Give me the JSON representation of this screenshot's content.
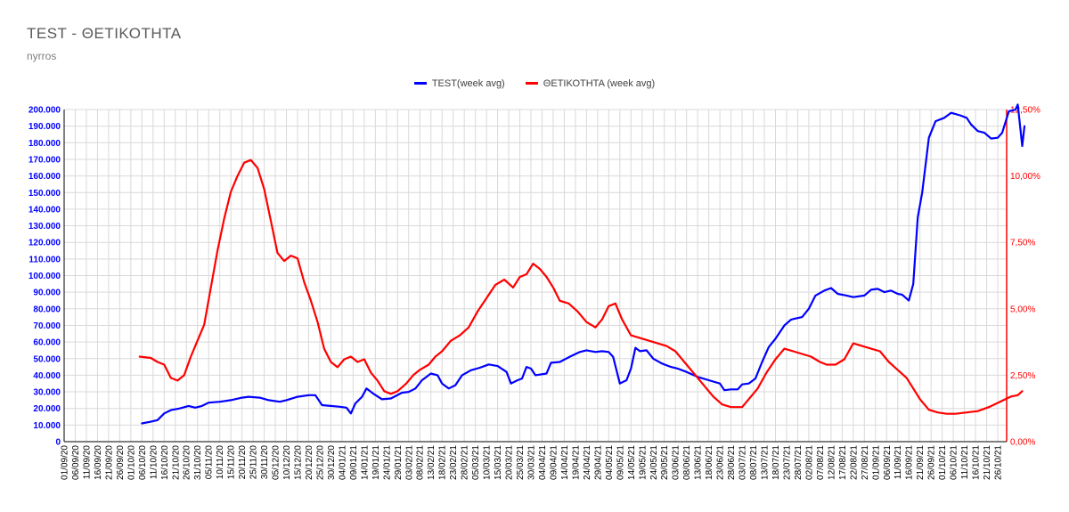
{
  "title": "TEST - ΘΕΤΙΚΟΤΗΤΑ",
  "subtitle": "nyrros",
  "colors": {
    "test": "#0000ff",
    "positivity": "#ff0000",
    "grid": "#d9d9d9"
  },
  "chart_data": {
    "type": "line",
    "title": "TEST - ΘΕΤΙΚΟΤΗΤΑ",
    "subtitle": "nyrros",
    "legend_position": "top-center",
    "grid": true,
    "x_start": "2020-09-01",
    "x_end": "2021-10-30",
    "x_tick_labels": [
      "01/09/20",
      "06/09/20",
      "11/09/20",
      "16/09/20",
      "21/09/20",
      "26/09/20",
      "01/10/20",
      "06/10/20",
      "11/10/20",
      "16/10/20",
      "21/10/20",
      "26/10/20",
      "31/10/20",
      "05/11/20",
      "10/11/20",
      "15/11/20",
      "20/11/20",
      "25/11/20",
      "30/11/20",
      "05/12/20",
      "10/12/20",
      "15/12/20",
      "20/12/20",
      "25/12/20",
      "30/12/20",
      "04/01/21",
      "09/01/21",
      "14/01/21",
      "19/01/21",
      "24/01/21",
      "29/01/21",
      "03/02/21",
      "08/02/21",
      "13/02/21",
      "18/02/21",
      "23/02/21",
      "28/02/21",
      "05/03/21",
      "10/03/21",
      "15/03/21",
      "20/03/21",
      "25/03/21",
      "30/03/21",
      "04/04/21",
      "09/04/21",
      "14/04/21",
      "19/04/21",
      "24/04/21",
      "29/04/21",
      "04/05/21",
      "09/05/21",
      "14/05/21",
      "19/05/21",
      "24/05/21",
      "29/05/21",
      "03/06/21",
      "08/06/21",
      "13/06/21",
      "18/06/21",
      "23/06/21",
      "28/06/21",
      "03/07/21",
      "08/07/21",
      "13/07/21",
      "18/07/21",
      "23/07/21",
      "28/07/21",
      "02/08/21",
      "07/08/21",
      "12/08/21",
      "17/08/21",
      "22/08/21",
      "27/08/21",
      "01/09/21",
      "06/09/21",
      "11/09/21",
      "16/09/21",
      "21/09/21",
      "26/09/21",
      "01/10/21",
      "06/10/21",
      "11/10/21",
      "16/10/21",
      "21/10/21",
      "26/10/21"
    ],
    "y_left": {
      "min": 0,
      "max": 200000,
      "tick_labels": [
        "0",
        "10.000",
        "20.000",
        "30.000",
        "40.000",
        "50.000",
        "60.000",
        "70.000",
        "80.000",
        "90.000",
        "100.000",
        "110.000",
        "120.000",
        "130.000",
        "140.000",
        "150.000",
        "160.000",
        "170.000",
        "180.000",
        "190.000",
        "200.000"
      ]
    },
    "y_right": {
      "min": 0,
      "max": 12.5,
      "tick_labels": [
        "0,00%",
        "2,50%",
        "5,00%",
        "7,50%",
        "10,00%",
        "12,50%"
      ]
    },
    "series": [
      {
        "name": "TEST(week avg)",
        "axis": "left",
        "color": "#0000ff",
        "points": [
          [
            "2020-10-06",
            11000
          ],
          [
            "2020-10-10",
            12000
          ],
          [
            "2020-10-13",
            13000
          ],
          [
            "2020-10-16",
            17000
          ],
          [
            "2020-10-19",
            19000
          ],
          [
            "2020-10-23",
            20000
          ],
          [
            "2020-10-27",
            21500
          ],
          [
            "2020-10-30",
            20500
          ],
          [
            "2020-11-02",
            21500
          ],
          [
            "2020-11-05",
            23500
          ],
          [
            "2020-11-10",
            24000
          ],
          [
            "2020-11-15",
            25000
          ],
          [
            "2020-11-20",
            26500
          ],
          [
            "2020-11-23",
            27000
          ],
          [
            "2020-11-28",
            26500
          ],
          [
            "2020-12-02",
            25000
          ],
          [
            "2020-12-07",
            24000
          ],
          [
            "2020-12-10",
            25000
          ],
          [
            "2020-12-15",
            27000
          ],
          [
            "2020-12-20",
            28000
          ],
          [
            "2020-12-23",
            28000
          ],
          [
            "2020-12-26",
            22000
          ],
          [
            "2020-12-30",
            21500
          ],
          [
            "2021-01-03",
            21000
          ],
          [
            "2021-01-06",
            20500
          ],
          [
            "2021-01-08",
            17000
          ],
          [
            "2021-01-10",
            23000
          ],
          [
            "2021-01-13",
            27000
          ],
          [
            "2021-01-15",
            32000
          ],
          [
            "2021-01-18",
            29000
          ],
          [
            "2021-01-22",
            25500
          ],
          [
            "2021-01-26",
            26000
          ],
          [
            "2021-01-31",
            29500
          ],
          [
            "2021-02-03",
            30000
          ],
          [
            "2021-02-06",
            32000
          ],
          [
            "2021-02-09",
            37000
          ],
          [
            "2021-02-13",
            41000
          ],
          [
            "2021-02-16",
            40000
          ],
          [
            "2021-02-18",
            35000
          ],
          [
            "2021-02-21",
            32000
          ],
          [
            "2021-02-24",
            34000
          ],
          [
            "2021-02-27",
            40000
          ],
          [
            "2021-03-03",
            43000
          ],
          [
            "2021-03-07",
            44500
          ],
          [
            "2021-03-11",
            46500
          ],
          [
            "2021-03-15",
            45500
          ],
          [
            "2021-03-19",
            42000
          ],
          [
            "2021-03-21",
            35000
          ],
          [
            "2021-03-24",
            37000
          ],
          [
            "2021-03-26",
            38000
          ],
          [
            "2021-03-28",
            45000
          ],
          [
            "2021-03-30",
            44000
          ],
          [
            "2021-04-01",
            40000
          ],
          [
            "2021-04-06",
            41000
          ],
          [
            "2021-04-08",
            47500
          ],
          [
            "2021-04-12",
            48000
          ],
          [
            "2021-04-17",
            51500
          ],
          [
            "2021-04-21",
            54000
          ],
          [
            "2021-04-24",
            55000
          ],
          [
            "2021-04-28",
            54000
          ],
          [
            "2021-05-01",
            54500
          ],
          [
            "2021-05-04",
            54000
          ],
          [
            "2021-05-06",
            51000
          ],
          [
            "2021-05-09",
            35000
          ],
          [
            "2021-05-12",
            37000
          ],
          [
            "2021-05-14",
            44000
          ],
          [
            "2021-05-16",
            56500
          ],
          [
            "2021-05-18",
            54500
          ],
          [
            "2021-05-21",
            55000
          ],
          [
            "2021-05-24",
            50000
          ],
          [
            "2021-05-28",
            47000
          ],
          [
            "2021-06-01",
            45000
          ],
          [
            "2021-06-04",
            44000
          ],
          [
            "2021-06-08",
            42000
          ],
          [
            "2021-06-13",
            39000
          ],
          [
            "2021-06-18",
            37000
          ],
          [
            "2021-06-23",
            35000
          ],
          [
            "2021-06-25",
            31000
          ],
          [
            "2021-06-28",
            31500
          ],
          [
            "2021-07-01",
            31500
          ],
          [
            "2021-07-03",
            34500
          ],
          [
            "2021-07-06",
            35000
          ],
          [
            "2021-07-09",
            38000
          ],
          [
            "2021-07-12",
            48000
          ],
          [
            "2021-07-15",
            57000
          ],
          [
            "2021-07-18",
            62000
          ],
          [
            "2021-07-22",
            70000
          ],
          [
            "2021-07-25",
            73500
          ],
          [
            "2021-07-30",
            75000
          ],
          [
            "2021-08-02",
            80000
          ],
          [
            "2021-08-05",
            88000
          ],
          [
            "2021-08-09",
            91000
          ],
          [
            "2021-08-12",
            92500
          ],
          [
            "2021-08-15",
            89000
          ],
          [
            "2021-08-19",
            88000
          ],
          [
            "2021-08-22",
            87000
          ],
          [
            "2021-08-27",
            88000
          ],
          [
            "2021-08-30",
            91500
          ],
          [
            "2021-09-02",
            92000
          ],
          [
            "2021-09-05",
            90000
          ],
          [
            "2021-09-08",
            91000
          ],
          [
            "2021-09-11",
            89000
          ],
          [
            "2021-09-13",
            88500
          ],
          [
            "2021-09-16",
            85000
          ],
          [
            "2021-09-18",
            95000
          ],
          [
            "2021-09-20",
            135000
          ],
          [
            "2021-09-22",
            150000
          ],
          [
            "2021-09-25",
            183000
          ],
          [
            "2021-09-28",
            193000
          ],
          [
            "2021-10-02",
            195000
          ],
          [
            "2021-10-05",
            198000
          ],
          [
            "2021-10-09",
            196500
          ],
          [
            "2021-10-12",
            195000
          ],
          [
            "2021-10-14",
            191000
          ],
          [
            "2021-10-17",
            187000
          ],
          [
            "2021-10-20",
            186000
          ],
          [
            "2021-10-23",
            182500
          ],
          [
            "2021-10-26",
            183000
          ],
          [
            "2021-10-28",
            186000
          ],
          [
            "2021-10-31",
            199000
          ],
          [
            "2021-11-03",
            200000
          ],
          [
            "2021-11-04",
            203000
          ],
          [
            "2021-11-06",
            178000
          ],
          [
            "2021-11-07",
            190000
          ]
        ]
      },
      {
        "name": "ΘΕΤΙΚΟΤΗΤΑ (week avg)",
        "axis": "right",
        "color": "#ff0000",
        "points": [
          [
            "2020-10-05",
            3.2
          ],
          [
            "2020-10-10",
            3.15
          ],
          [
            "2020-10-13",
            3.0
          ],
          [
            "2020-10-16",
            2.9
          ],
          [
            "2020-10-19",
            2.4
          ],
          [
            "2020-10-22",
            2.3
          ],
          [
            "2020-10-25",
            2.5
          ],
          [
            "2020-10-28",
            3.2
          ],
          [
            "2020-10-31",
            3.8
          ],
          [
            "2020-11-03",
            4.4
          ],
          [
            "2020-11-06",
            5.8
          ],
          [
            "2020-11-09",
            7.2
          ],
          [
            "2020-11-12",
            8.4
          ],
          [
            "2020-11-15",
            9.4
          ],
          [
            "2020-11-18",
            10.0
          ],
          [
            "2020-11-21",
            10.5
          ],
          [
            "2020-11-24",
            10.6
          ],
          [
            "2020-11-27",
            10.3
          ],
          [
            "2020-11-30",
            9.5
          ],
          [
            "2020-12-03",
            8.3
          ],
          [
            "2020-12-06",
            7.1
          ],
          [
            "2020-12-09",
            6.8
          ],
          [
            "2020-12-12",
            7.0
          ],
          [
            "2020-12-15",
            6.9
          ],
          [
            "2020-12-18",
            6.0
          ],
          [
            "2020-12-21",
            5.3
          ],
          [
            "2020-12-24",
            4.5
          ],
          [
            "2020-12-27",
            3.5
          ],
          [
            "2020-12-30",
            3.0
          ],
          [
            "2021-01-02",
            2.8
          ],
          [
            "2021-01-05",
            3.1
          ],
          [
            "2021-01-08",
            3.2
          ],
          [
            "2021-01-11",
            3.0
          ],
          [
            "2021-01-14",
            3.1
          ],
          [
            "2021-01-17",
            2.6
          ],
          [
            "2021-01-20",
            2.3
          ],
          [
            "2021-01-23",
            1.9
          ],
          [
            "2021-01-26",
            1.8
          ],
          [
            "2021-01-29",
            1.9
          ],
          [
            "2021-02-02",
            2.2
          ],
          [
            "2021-02-05",
            2.5
          ],
          [
            "2021-02-08",
            2.7
          ],
          [
            "2021-02-12",
            2.9
          ],
          [
            "2021-02-15",
            3.2
          ],
          [
            "2021-02-18",
            3.4
          ],
          [
            "2021-02-22",
            3.8
          ],
          [
            "2021-02-26",
            4.0
          ],
          [
            "2021-03-02",
            4.3
          ],
          [
            "2021-03-06",
            4.9
          ],
          [
            "2021-03-10",
            5.4
          ],
          [
            "2021-03-14",
            5.9
          ],
          [
            "2021-03-18",
            6.1
          ],
          [
            "2021-03-22",
            5.8
          ],
          [
            "2021-03-25",
            6.2
          ],
          [
            "2021-03-28",
            6.3
          ],
          [
            "2021-03-31",
            6.7
          ],
          [
            "2021-04-03",
            6.5
          ],
          [
            "2021-04-06",
            6.2
          ],
          [
            "2021-04-09",
            5.8
          ],
          [
            "2021-04-12",
            5.3
          ],
          [
            "2021-04-16",
            5.2
          ],
          [
            "2021-04-20",
            4.9
          ],
          [
            "2021-04-24",
            4.5
          ],
          [
            "2021-04-28",
            4.3
          ],
          [
            "2021-05-01",
            4.6
          ],
          [
            "2021-05-04",
            5.1
          ],
          [
            "2021-05-07",
            5.2
          ],
          [
            "2021-05-10",
            4.6
          ],
          [
            "2021-05-14",
            4.0
          ],
          [
            "2021-05-18",
            3.9
          ],
          [
            "2021-05-22",
            3.8
          ],
          [
            "2021-05-26",
            3.7
          ],
          [
            "2021-05-30",
            3.6
          ],
          [
            "2021-06-03",
            3.4
          ],
          [
            "2021-06-07",
            3.0
          ],
          [
            "2021-06-12",
            2.5
          ],
          [
            "2021-06-16",
            2.1
          ],
          [
            "2021-06-20",
            1.7
          ],
          [
            "2021-06-24",
            1.4
          ],
          [
            "2021-06-28",
            1.3
          ],
          [
            "2021-07-03",
            1.3
          ],
          [
            "2021-07-06",
            1.6
          ],
          [
            "2021-07-10",
            2.0
          ],
          [
            "2021-07-14",
            2.6
          ],
          [
            "2021-07-18",
            3.1
          ],
          [
            "2021-07-22",
            3.5
          ],
          [
            "2021-07-26",
            3.4
          ],
          [
            "2021-07-30",
            3.3
          ],
          [
            "2021-08-03",
            3.2
          ],
          [
            "2021-08-07",
            3.0
          ],
          [
            "2021-08-10",
            2.9
          ],
          [
            "2021-08-14",
            2.9
          ],
          [
            "2021-08-18",
            3.1
          ],
          [
            "2021-08-22",
            3.7
          ],
          [
            "2021-08-26",
            3.6
          ],
          [
            "2021-08-30",
            3.5
          ],
          [
            "2021-09-03",
            3.4
          ],
          [
            "2021-09-07",
            3.0
          ],
          [
            "2021-09-11",
            2.7
          ],
          [
            "2021-09-15",
            2.4
          ],
          [
            "2021-09-18",
            2.0
          ],
          [
            "2021-09-21",
            1.6
          ],
          [
            "2021-09-25",
            1.2
          ],
          [
            "2021-09-29",
            1.1
          ],
          [
            "2021-10-03",
            1.05
          ],
          [
            "2021-10-07",
            1.05
          ],
          [
            "2021-10-12",
            1.1
          ],
          [
            "2021-10-17",
            1.15
          ],
          [
            "2021-10-22",
            1.3
          ],
          [
            "2021-10-27",
            1.5
          ],
          [
            "2021-11-01",
            1.7
          ],
          [
            "2021-11-04",
            1.75
          ],
          [
            "2021-11-06",
            1.9
          ]
        ]
      }
    ]
  }
}
